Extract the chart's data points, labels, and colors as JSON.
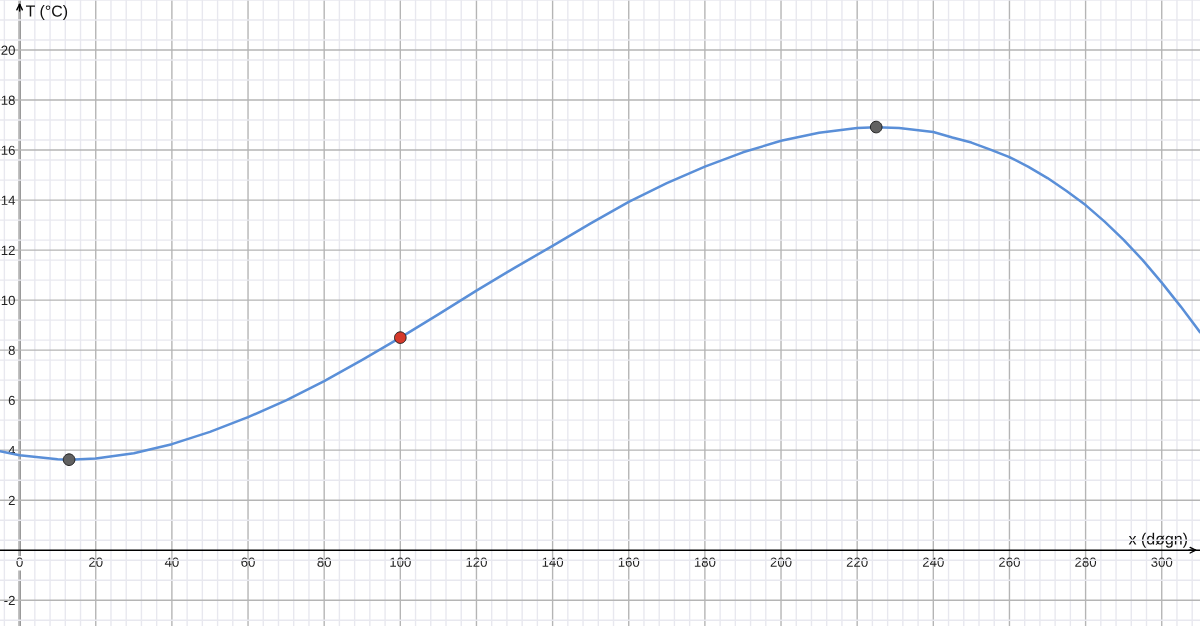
{
  "chart_data": {
    "type": "line",
    "xlabel": "x (døgn)",
    "ylabel": "T (°C)",
    "xlim": [
      -5.15,
      310.05
    ],
    "ylim": [
      -3.03,
      22.0
    ],
    "xticks": [
      0,
      20,
      40,
      60,
      80,
      100,
      120,
      140,
      160,
      180,
      200,
      220,
      240,
      260,
      280,
      300
    ],
    "yticks": [
      -2,
      2,
      4,
      6,
      8,
      10,
      12,
      14,
      16,
      18,
      20
    ],
    "grid": true,
    "series": [
      {
        "color": "#5a8fd8",
        "x": [
          -5.15,
          0,
          5,
          10,
          13,
          20,
          30,
          40,
          50,
          60,
          70,
          80,
          90,
          100,
          110,
          120,
          130,
          140,
          150,
          160,
          170,
          180,
          190,
          200,
          210,
          220,
          225,
          231,
          240,
          245,
          250,
          255,
          260,
          265,
          270,
          275,
          280,
          285,
          290,
          295,
          300,
          305,
          310.05
        ],
        "values": [
          3.96,
          3.8,
          3.72,
          3.64,
          3.62,
          3.67,
          3.88,
          4.24,
          4.73,
          5.32,
          5.99,
          6.76,
          7.61,
          8.5,
          9.43,
          10.38,
          11.29,
          12.17,
          13.07,
          13.93,
          14.68,
          15.34,
          15.91,
          16.37,
          16.69,
          16.88,
          16.91,
          16.88,
          16.72,
          16.5,
          16.3,
          16.02,
          15.72,
          15.33,
          14.88,
          14.36,
          13.8,
          13.14,
          12.41,
          11.6,
          10.7,
          9.74,
          8.72
        ]
      },
      {
        "type": "scatter",
        "color": "#616161",
        "marker": "circle",
        "x": [
          13,
          225
        ],
        "values": [
          3.62,
          16.92
        ]
      },
      {
        "type": "scatter",
        "color": "#d5392b",
        "marker": "circle",
        "x": [
          100
        ],
        "values": [
          8.5
        ]
      }
    ]
  }
}
